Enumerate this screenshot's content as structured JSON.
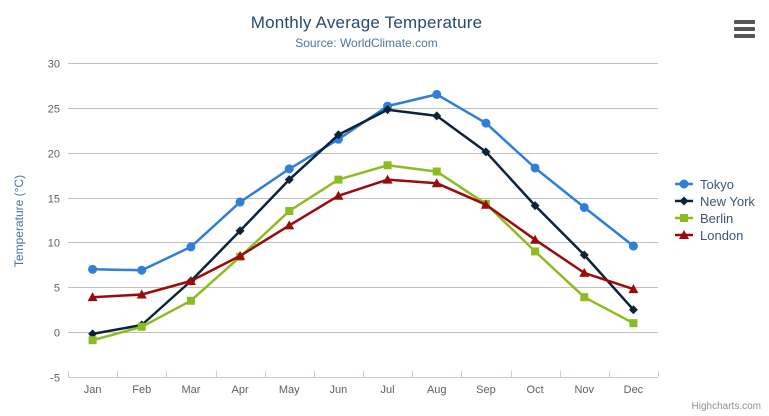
{
  "chart_data": {
    "type": "line",
    "title": "Monthly Average Temperature",
    "subtitle": "Source: WorldClimate.com",
    "xlabel": "",
    "ylabel": "Temperature (°C)",
    "categories": [
      "Jan",
      "Feb",
      "Mar",
      "Apr",
      "May",
      "Jun",
      "Jul",
      "Aug",
      "Sep",
      "Oct",
      "Nov",
      "Dec"
    ],
    "ylim": [
      -5,
      30
    ],
    "y_tick_interval": 5,
    "grid": true,
    "legend_position": "right",
    "series": [
      {
        "name": "Tokyo",
        "color": "#2f7ed8",
        "marker": "circle",
        "values": [
          7.0,
          6.9,
          9.5,
          14.5,
          18.2,
          21.5,
          25.2,
          26.5,
          23.3,
          18.3,
          13.9,
          9.6
        ]
      },
      {
        "name": "New York",
        "color": "#0d233a",
        "marker": "diamond",
        "values": [
          -0.2,
          0.8,
          5.7,
          11.3,
          17.0,
          22.0,
          24.8,
          24.1,
          20.1,
          14.1,
          8.6,
          2.5
        ]
      },
      {
        "name": "Berlin",
        "color": "#8bbc21",
        "marker": "square",
        "values": [
          -0.9,
          0.6,
          3.5,
          8.4,
          13.5,
          17.0,
          18.6,
          17.9,
          14.3,
          9.0,
          3.9,
          1.0
        ]
      },
      {
        "name": "London",
        "color": "#9c0b0b",
        "marker": "triangle",
        "values": [
          3.9,
          4.2,
          5.7,
          8.5,
          11.9,
          15.2,
          17.0,
          16.6,
          14.2,
          10.3,
          6.6,
          4.8
        ]
      }
    ],
    "colors": {
      "title": "#274b6d",
      "subtitle": "#4d759e",
      "axis_title": "#4a74a5",
      "grid_line": "#c0c0c0",
      "axis_line": "#c0d0e0",
      "tick_label": "#606060",
      "legend_text": "#3e576f"
    }
  },
  "credits": "Highcharts.com",
  "export_menu": {
    "icon": "hamburger-icon"
  }
}
